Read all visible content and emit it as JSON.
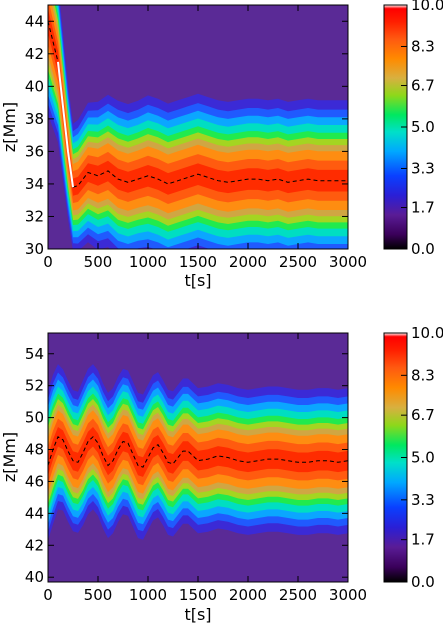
{
  "chart_data": [
    {
      "type": "heatmap",
      "xlabel": "t[s]",
      "ylabel": "z[Mm]",
      "xlim": [
        0,
        3000
      ],
      "ylim": [
        30,
        45
      ],
      "x_ticks": [
        "0",
        "500",
        "1000",
        "1500",
        "2000",
        "2500",
        "3000"
      ],
      "y_ticks": [
        "30",
        "32",
        "34",
        "36",
        "38",
        "40",
        "42",
        "44"
      ],
      "colorbar": {
        "range": [
          0.0,
          10.0
        ],
        "tick_labels": [
          "0.0",
          "1.7",
          "3.3",
          "5.0",
          "6.7",
          "8.3",
          "10.0"
        ]
      },
      "series": [
        {
          "style": "dashed",
          "color": "#000000",
          "t": [
            0,
            100,
            200,
            250,
            300,
            400,
            500,
            600,
            700,
            800,
            900,
            1000,
            1100,
            1200,
            1300,
            1400,
            1500,
            1600,
            1700,
            1800,
            1900,
            2000,
            2100,
            2200,
            2300,
            2400,
            2500,
            2600,
            2700,
            2800,
            2900,
            3000
          ],
          "z": [
            44,
            41.5,
            36.0,
            33.8,
            33.9,
            34.7,
            34.5,
            34.8,
            34.3,
            34.1,
            34.3,
            34.5,
            34.3,
            34.0,
            34.2,
            34.4,
            34.6,
            34.4,
            34.2,
            34.1,
            34.2,
            34.3,
            34.3,
            34.2,
            34.3,
            34.1,
            34.2,
            34.3,
            34.2,
            34.2,
            34.2,
            34.2
          ]
        }
      ],
      "band_sigma_Mm": [
        2.2,
        1.9,
        1.6,
        1.5,
        1.55,
        1.65,
        1.75,
        1.8,
        1.85,
        1.85,
        1.85,
        1.9,
        1.9,
        1.9,
        1.9,
        1.9,
        1.9,
        1.9,
        1.9,
        1.9,
        1.9,
        1.9,
        1.9,
        1.9,
        1.9,
        1.9,
        1.9,
        1.9,
        1.9,
        1.9,
        1.9,
        1.9
      ]
    },
    {
      "type": "heatmap",
      "xlabel": "t[s]",
      "ylabel": "z[Mm]",
      "xlim": [
        0,
        3000
      ],
      "ylim": [
        39.7,
        55.3
      ],
      "x_ticks": [
        "0",
        "500",
        "1000",
        "1500",
        "2000",
        "2500",
        "3000"
      ],
      "y_ticks": [
        "40",
        "42",
        "44",
        "46",
        "48",
        "50",
        "52",
        "54"
      ],
      "colorbar": {
        "range": [
          0.0,
          10.0
        ],
        "tick_labels": [
          "0.0",
          "1.7",
          "3.3",
          "5.0",
          "6.7",
          "8.3",
          "10.0"
        ]
      },
      "series": [
        {
          "style": "dashed",
          "color": "#000000",
          "t": [
            0,
            50,
            100,
            150,
            200,
            250,
            300,
            350,
            400,
            450,
            500,
            550,
            600,
            650,
            700,
            750,
            800,
            850,
            900,
            950,
            1000,
            1050,
            1100,
            1150,
            1200,
            1250,
            1300,
            1350,
            1400,
            1450,
            1500,
            1600,
            1700,
            1800,
            1900,
            2000,
            2100,
            2200,
            2300,
            2400,
            2500,
            2600,
            2700,
            2800,
            2900,
            3000
          ],
          "z": [
            47.0,
            48.0,
            48.8,
            48.6,
            47.9,
            47.3,
            47.2,
            47.8,
            48.5,
            48.8,
            48.4,
            47.6,
            47.0,
            47.3,
            48.0,
            48.5,
            48.4,
            47.7,
            47.0,
            46.9,
            47.5,
            48.1,
            48.3,
            47.8,
            47.2,
            47.1,
            47.5,
            47.9,
            47.9,
            47.6,
            47.3,
            47.4,
            47.6,
            47.5,
            47.3,
            47.2,
            47.3,
            47.4,
            47.4,
            47.3,
            47.2,
            47.2,
            47.3,
            47.3,
            47.2,
            47.3
          ]
        }
      ],
      "band_sigma_Mm": [
        1.8,
        1.8,
        1.75,
        1.7,
        1.7,
        1.7,
        1.7,
        1.75,
        1.75,
        1.75,
        1.75,
        1.75,
        1.75,
        1.75,
        1.75,
        1.75,
        1.75,
        1.75,
        1.75,
        1.75,
        1.75,
        1.75,
        1.75,
        1.75,
        1.75,
        1.75,
        1.75,
        1.75,
        1.75,
        1.75,
        1.75,
        1.75,
        1.75,
        1.75,
        1.75,
        1.75,
        1.75,
        1.75,
        1.75,
        1.75,
        1.75,
        1.75,
        1.75,
        1.75,
        1.75,
        1.75
      ]
    }
  ]
}
